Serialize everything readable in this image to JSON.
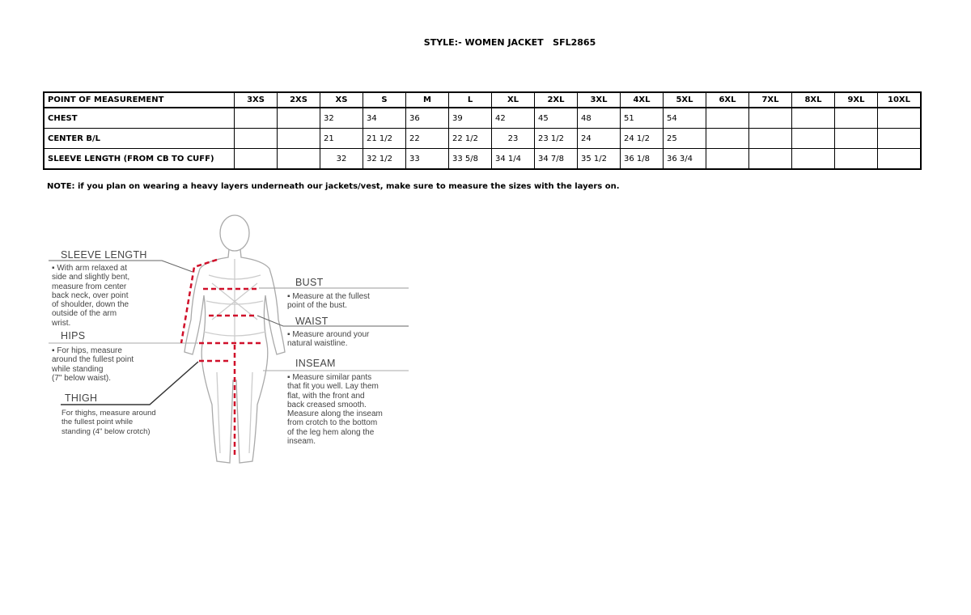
{
  "title": "STYLE:- WOMEN JACKET   SFL2865",
  "table": {
    "header": [
      "POINT OF MEASUREMENT",
      "3XS",
      "2XS",
      "XS",
      "S",
      "M",
      "L",
      "XL",
      "2XL",
      "3XL",
      "4XL",
      "5XL",
      "6XL",
      "7XL",
      "8XL",
      "9XL",
      "10XL"
    ],
    "rows": [
      [
        "CHEST",
        "",
        "",
        "32",
        "34",
        "36",
        "39",
        "42",
        "45",
        "48",
        "51",
        "54",
        "",
        "",
        "",
        "",
        ""
      ],
      [
        "CENTER B/L",
        "",
        "",
        "21",
        "21 1/2",
        "22",
        "22 1/2",
        "23",
        "23 1/2",
        "24",
        "24 1/2",
        "25",
        "",
        "",
        "",
        "",
        ""
      ],
      [
        "SLEEVE LENGTH (FROM CB TO CUFF)",
        "",
        "",
        "32",
        "32 1/2",
        "33",
        "33 5/8",
        "34 1/4",
        "34 7/8",
        "35 1/2",
        "36 1/8",
        "36 3/4",
        "",
        "",
        "",
        "",
        ""
      ]
    ]
  },
  "note": "NOTE: if you plan on wearing a heavy layers underneath our jackets/vest, make sure to measure the sizes with the layers on.",
  "guide": {
    "sleeve": {
      "title": "SLEEVE LENGTH",
      "text": "▪ With arm relaxed at\nside and slightly bent,\nmeasure from center\nback neck, over point\nof shoulder, down the\noutside of the arm\nwrist."
    },
    "hips": {
      "title": "HIPS",
      "text": "▪ For hips, measure\naround the fullest point\nwhile standing\n(7\" below waist)."
    },
    "thigh": {
      "title": "THIGH",
      "text": "For thighs, measure around\nthe fullest point while\nstanding (4\" below crotch)"
    },
    "bust": {
      "title": "BUST",
      "text": "▪ Measure at the fullest\npoint of the bust."
    },
    "waist": {
      "title": "WAIST",
      "text": "▪ Measure around your\nnatural waistline."
    },
    "inseam": {
      "title": "INSEAM",
      "text": "▪ Measure similar pants\nthat fit you well. Lay them\nflat, with the front and\nback creased smooth.\nMeasure along the inseam\nfrom crotch to the bottom\nof the leg hem along the\ninseam."
    },
    "accent_color": "#d0102a"
  }
}
